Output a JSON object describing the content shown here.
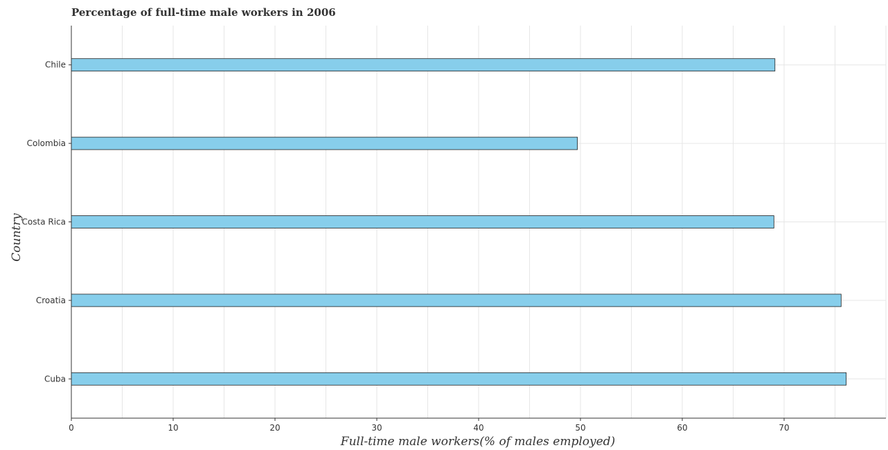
{
  "chart_data": {
    "type": "bar",
    "orientation": "horizontal",
    "title": "Percentage of full-time male workers in 2006",
    "xlabel": "Full-time male workers(% of males employed)",
    "ylabel": "Country",
    "categories": [
      "Chile",
      "Colombia",
      "Costa Rica",
      "Croatia",
      "Cuba"
    ],
    "values": [
      69.1,
      49.7,
      69.0,
      75.6,
      76.1
    ],
    "xlim": [
      0,
      80
    ],
    "xticks": [
      "0",
      "10",
      "20",
      "30",
      "40",
      "50",
      "60",
      "70"
    ],
    "grid": true,
    "bar_color": "#87ceeb"
  }
}
